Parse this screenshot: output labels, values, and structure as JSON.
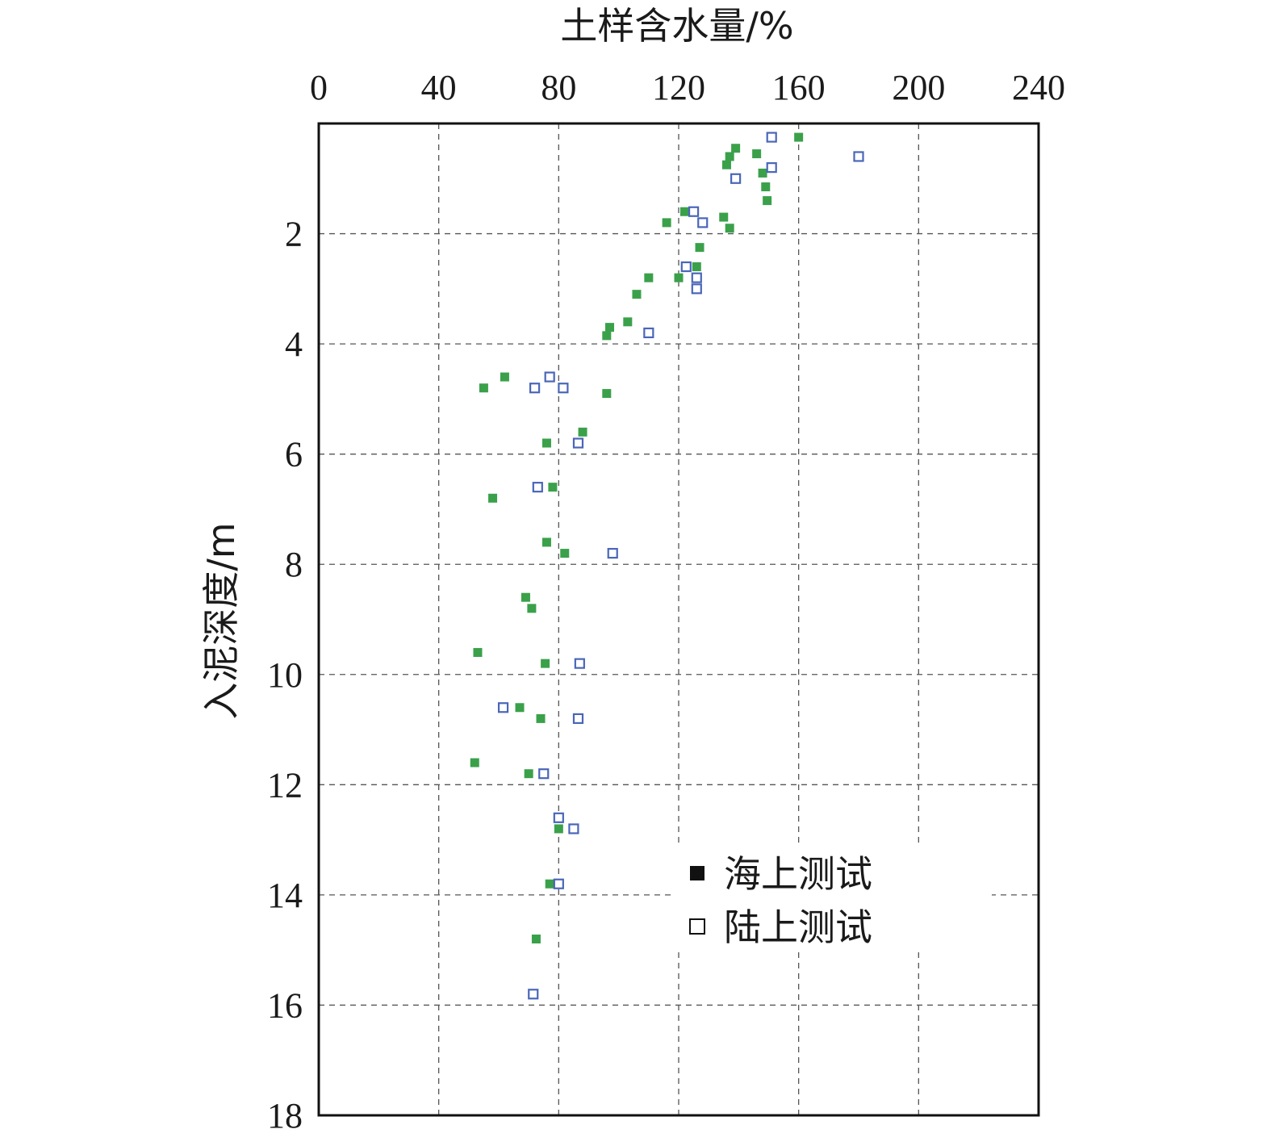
{
  "chart_data": {
    "type": "scatter",
    "xlabel": "土样含水量/%",
    "ylabel": "入泥深度/m",
    "x_axis_position": "top",
    "y_axis_inverted": true,
    "xlim": [
      0,
      240
    ],
    "ylim": [
      0,
      18
    ],
    "x_ticks": [
      "0",
      "40",
      "80",
      "120",
      "160",
      "200",
      "240"
    ],
    "y_ticks": [
      "2",
      "4",
      "6",
      "8",
      "10",
      "12",
      "14",
      "16",
      "18"
    ],
    "x_tick_values": [
      0,
      40,
      80,
      120,
      160,
      200,
      240
    ],
    "y_tick_values": [
      2,
      4,
      6,
      8,
      10,
      12,
      14,
      16,
      18
    ],
    "grid": true,
    "legend_position": "lower-right",
    "series": [
      {
        "name": "海上测试",
        "marker": "filled-square",
        "legend_marker_color": "#111111",
        "color": "#3aa14a",
        "points": [
          [
            160,
            0.25
          ],
          [
            139,
            0.45
          ],
          [
            146,
            0.55
          ],
          [
            137,
            0.6
          ],
          [
            136,
            0.75
          ],
          [
            148,
            0.9
          ],
          [
            149,
            1.15
          ],
          [
            149.5,
            1.4
          ],
          [
            122,
            1.6
          ],
          [
            135,
            1.7
          ],
          [
            116,
            1.8
          ],
          [
            137,
            1.9
          ],
          [
            127,
            2.25
          ],
          [
            126,
            2.6
          ],
          [
            110,
            2.8
          ],
          [
            120,
            2.8
          ],
          [
            106,
            3.1
          ],
          [
            103,
            3.6
          ],
          [
            97,
            3.7
          ],
          [
            96,
            3.85
          ],
          [
            62,
            4.6
          ],
          [
            55,
            4.8
          ],
          [
            96,
            4.9
          ],
          [
            88,
            5.6
          ],
          [
            76,
            5.8
          ],
          [
            78,
            6.6
          ],
          [
            58,
            6.8
          ],
          [
            76,
            7.6
          ],
          [
            82,
            7.8
          ],
          [
            69,
            8.6
          ],
          [
            71,
            8.8
          ],
          [
            53,
            9.6
          ],
          [
            75.5,
            9.8
          ],
          [
            67,
            10.6
          ],
          [
            74,
            10.8
          ],
          [
            52,
            11.6
          ],
          [
            70,
            11.8
          ],
          [
            80,
            12.8
          ],
          [
            77,
            13.8
          ],
          [
            72.5,
            14.8
          ]
        ]
      },
      {
        "name": "陆上测试",
        "marker": "open-square",
        "color": "#4a66b8",
        "points": [
          [
            151,
            0.25
          ],
          [
            180,
            0.6
          ],
          [
            151,
            0.8
          ],
          [
            139,
            1.0
          ],
          [
            125,
            1.6
          ],
          [
            128,
            1.8
          ],
          [
            122.5,
            2.6
          ],
          [
            126,
            2.8
          ],
          [
            126,
            3.0
          ],
          [
            110,
            3.8
          ],
          [
            77,
            4.6
          ],
          [
            72,
            4.8
          ],
          [
            81.5,
            4.8
          ],
          [
            86.5,
            5.8
          ],
          [
            73,
            6.6
          ],
          [
            98,
            7.8
          ],
          [
            87,
            9.8
          ],
          [
            61.5,
            10.6
          ],
          [
            86.5,
            10.8
          ],
          [
            75,
            11.8
          ],
          [
            80,
            12.6
          ],
          [
            85,
            12.8
          ],
          [
            80,
            13.8
          ],
          [
            71.5,
            15.8
          ]
        ]
      }
    ]
  }
}
